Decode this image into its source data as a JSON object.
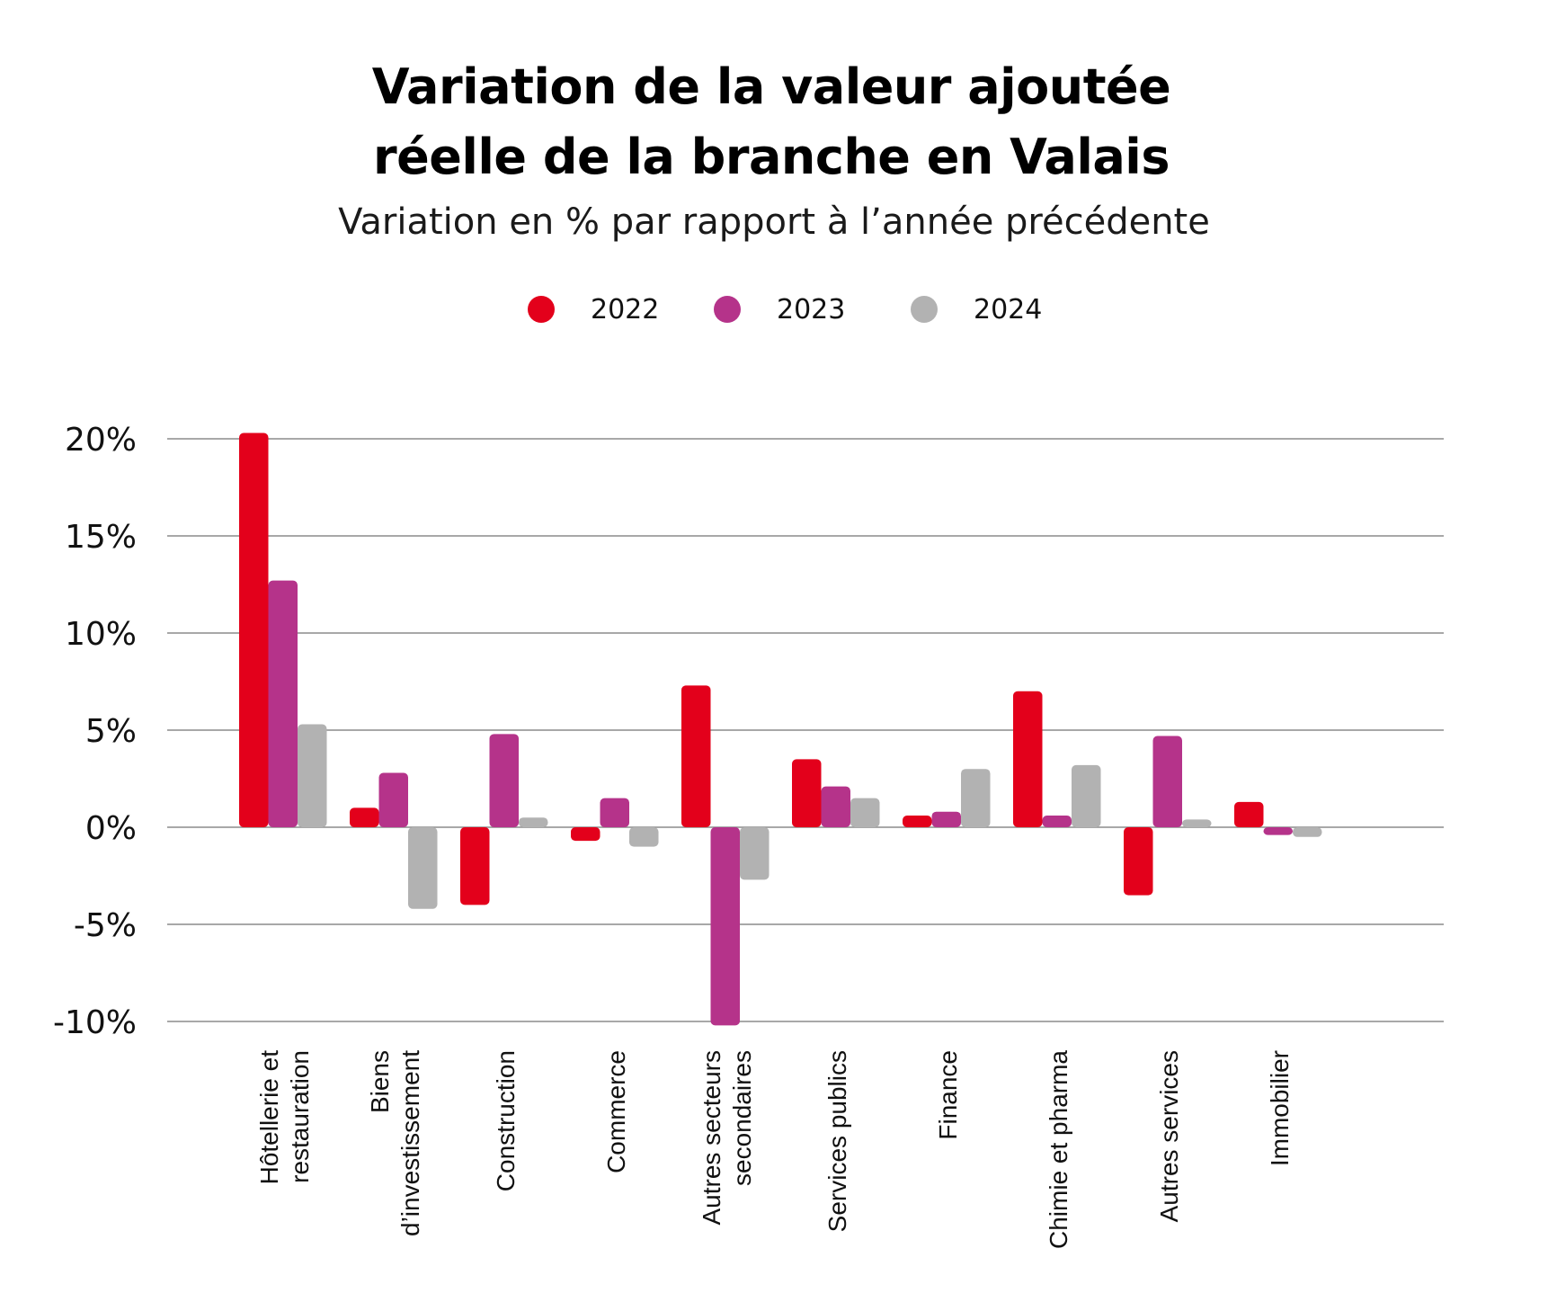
{
  "chart_data": {
    "type": "bar",
    "title_lines": [
      "Variation de la valeur ajoutée",
      "réelle de la branche en Valais"
    ],
    "subtitle": "Variation en % par rapport à l’année précédente",
    "categories": [
      [
        "Hôtellerie et",
        "restauration"
      ],
      [
        "Biens",
        "d’investissement"
      ],
      [
        "Construction"
      ],
      [
        "Commerce"
      ],
      [
        "Autres secteurs",
        "secondaires"
      ],
      [
        "Services publics"
      ],
      [
        "Finance"
      ],
      [
        "Chimie et pharma"
      ],
      [
        "Autres services"
      ],
      [
        "Immobilier"
      ]
    ],
    "series": [
      {
        "name": "2022",
        "color": "#E3001B",
        "values": [
          20.3,
          1.0,
          -4.0,
          -0.7,
          7.3,
          3.5,
          0.6,
          7.0,
          -3.5,
          1.3
        ]
      },
      {
        "name": "2023",
        "color": "#B5338A",
        "values": [
          12.7,
          2.8,
          4.8,
          1.5,
          -10.2,
          2.1,
          0.8,
          0.6,
          4.7,
          -0.4
        ]
      },
      {
        "name": "2024",
        "color": "#B2B2B2",
        "values": [
          5.3,
          -4.2,
          0.5,
          -1.0,
          -2.7,
          1.5,
          3.0,
          3.2,
          0.4,
          -0.5
        ]
      }
    ],
    "y_ticks": [
      20,
      15,
      10,
      5,
      0,
      -5,
      -10
    ],
    "y_tick_labels": [
      "20%",
      "15%",
      "10%",
      "5%",
      "0%",
      "-5%",
      "-10%"
    ],
    "ylim": [
      -10,
      20
    ],
    "grid": true,
    "legend_position": "top-center"
  }
}
